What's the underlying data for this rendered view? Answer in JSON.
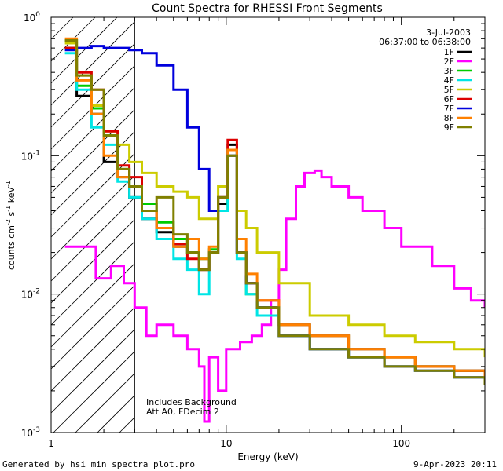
{
  "chart_data": {
    "type": "line",
    "title": "Count Spectra for RHESSI Front Segments",
    "xlabel": "Energy (keV)",
    "ylabel": "counts cm-2 s-1 keV-1",
    "xscale": "log",
    "yscale": "log",
    "xlim": [
      1,
      300
    ],
    "ylim": [
      0.001,
      1
    ],
    "x_tick_labels": [
      {
        "value": 1,
        "label": "1"
      },
      {
        "value": 10,
        "label": "10"
      },
      {
        "value": 100,
        "label": "100"
      }
    ],
    "y_tick_labels": [
      {
        "value": 1,
        "base": "10",
        "exp": "0"
      },
      {
        "value": 0.1,
        "base": "10",
        "exp": "-1"
      },
      {
        "value": 0.01,
        "base": "10",
        "exp": "-2"
      },
      {
        "value": 0.001,
        "base": "10",
        "exp": "-3"
      }
    ],
    "date": "3-Jul-2003",
    "time_range": "06:37:00 to 06:38:00",
    "annotations": [
      "Includes Background",
      "Att A0, FDecim 2"
    ],
    "hatched_region_max_kev": 3,
    "series": [
      {
        "name": "1F",
        "color": "#000000",
        "energies": [
          1.2,
          1.4,
          1.7,
          2.0,
          2.4,
          2.8,
          3.3,
          4.0,
          5.0,
          6.0,
          7.0,
          8.0,
          9.0,
          10.2,
          11.5,
          13,
          15,
          20,
          30,
          50,
          80,
          120,
          200,
          300
        ],
        "values": [
          0.6,
          0.27,
          0.2,
          0.09,
          0.07,
          0.05,
          0.035,
          0.028,
          0.022,
          0.02,
          0.015,
          0.02,
          0.045,
          0.12,
          0.02,
          0.012,
          0.008,
          0.005,
          0.004,
          0.0035,
          0.003,
          0.003,
          0.0028,
          0.0025
        ]
      },
      {
        "name": "2F",
        "color": "#ff00ff",
        "energies": [
          1.2,
          1.5,
          1.8,
          2.2,
          2.6,
          3.0,
          3.5,
          4.0,
          5.0,
          6.0,
          7.0,
          7.5,
          8.0,
          9.0,
          10,
          12,
          14,
          16,
          18,
          20,
          22,
          25,
          28,
          32,
          35,
          40,
          50,
          60,
          80,
          100,
          150,
          200,
          250,
          300
        ],
        "values": [
          0.022,
          0.022,
          0.013,
          0.016,
          0.012,
          0.008,
          0.005,
          0.006,
          0.005,
          0.004,
          0.003,
          0.0012,
          0.0035,
          0.002,
          0.004,
          0.0045,
          0.005,
          0.006,
          0.009,
          0.015,
          0.035,
          0.06,
          0.075,
          0.078,
          0.07,
          0.06,
          0.05,
          0.04,
          0.03,
          0.022,
          0.016,
          0.011,
          0.009,
          0.008
        ]
      },
      {
        "name": "3F",
        "color": "#00cc00",
        "energies": [
          1.2,
          1.4,
          1.7,
          2.0,
          2.4,
          2.8,
          3.3,
          4.0,
          5.0,
          6.0,
          7.0,
          8.0,
          9.0,
          10.2,
          11.5,
          13,
          15,
          20,
          30,
          50,
          80,
          120,
          200,
          300
        ],
        "values": [
          0.68,
          0.32,
          0.22,
          0.14,
          0.08,
          0.06,
          0.045,
          0.033,
          0.025,
          0.02,
          0.018,
          0.021,
          0.04,
          0.1,
          0.02,
          0.01,
          0.008,
          0.006,
          0.005,
          0.004,
          0.0035,
          0.003,
          0.0028,
          0.0025
        ]
      },
      {
        "name": "4F",
        "color": "#00e5e5",
        "energies": [
          1.2,
          1.4,
          1.7,
          2.0,
          2.4,
          2.8,
          3.3,
          4.0,
          5.0,
          6.0,
          7.0,
          8.0,
          9.0,
          10.2,
          11.5,
          13,
          15,
          20,
          30,
          50,
          80,
          120,
          200,
          300
        ],
        "values": [
          0.55,
          0.3,
          0.16,
          0.12,
          0.065,
          0.05,
          0.035,
          0.025,
          0.018,
          0.015,
          0.01,
          0.02,
          0.04,
          0.11,
          0.018,
          0.01,
          0.007,
          0.005,
          0.004,
          0.0035,
          0.003,
          0.0028,
          0.0025,
          0.0022
        ]
      },
      {
        "name": "5F",
        "color": "#cccc00",
        "energies": [
          1.2,
          1.4,
          1.7,
          2.0,
          2.4,
          2.8,
          3.3,
          4.0,
          5.0,
          6.0,
          7.0,
          8.0,
          9.0,
          10.2,
          11.5,
          13,
          15,
          20,
          30,
          50,
          80,
          120,
          200,
          300
        ],
        "values": [
          0.65,
          0.38,
          0.23,
          0.15,
          0.12,
          0.09,
          0.075,
          0.06,
          0.055,
          0.05,
          0.035,
          0.035,
          0.06,
          0.1,
          0.04,
          0.03,
          0.02,
          0.012,
          0.007,
          0.006,
          0.005,
          0.0045,
          0.004,
          0.0035
        ]
      },
      {
        "name": "6F",
        "color": "#dd0000",
        "energies": [
          1.2,
          1.4,
          1.7,
          2.0,
          2.4,
          2.8,
          3.3,
          4.0,
          5.0,
          6.0,
          7.0,
          8.0,
          9.0,
          10.2,
          11.5,
          13,
          15,
          20,
          30,
          50,
          80,
          120,
          200,
          300
        ],
        "values": [
          0.6,
          0.4,
          0.3,
          0.15,
          0.085,
          0.07,
          0.04,
          0.03,
          0.023,
          0.018,
          0.015,
          0.02,
          0.05,
          0.13,
          0.02,
          0.012,
          0.009,
          0.006,
          0.005,
          0.004,
          0.0035,
          0.003,
          0.0028,
          0.0025
        ]
      },
      {
        "name": "7F",
        "color": "#0000dd",
        "energies": [
          1.2,
          1.4,
          1.7,
          2.0,
          2.4,
          2.8,
          3.3,
          4.0,
          5.0,
          6.0,
          7.0,
          8.0,
          9.0,
          10.2,
          11.5,
          13,
          15,
          20,
          30,
          50,
          80,
          120,
          200,
          300
        ],
        "values": [
          0.58,
          0.6,
          0.62,
          0.6,
          0.6,
          0.58,
          0.55,
          0.45,
          0.3,
          0.16,
          0.08,
          0.04,
          0.05,
          0.1,
          0.02,
          0.012,
          0.008,
          0.005,
          0.004,
          0.0035,
          0.003,
          0.0028,
          0.0025,
          0.0022
        ]
      },
      {
        "name": "8F",
        "color": "#ff8000",
        "energies": [
          1.2,
          1.4,
          1.7,
          2.0,
          2.4,
          2.8,
          3.3,
          4.0,
          5.0,
          6.0,
          7.0,
          8.0,
          9.0,
          10.2,
          11.5,
          13,
          15,
          20,
          30,
          50,
          80,
          120,
          200,
          300
        ],
        "values": [
          0.7,
          0.35,
          0.2,
          0.1,
          0.07,
          0.06,
          0.04,
          0.03,
          0.022,
          0.025,
          0.018,
          0.022,
          0.05,
          0.11,
          0.025,
          0.014,
          0.009,
          0.006,
          0.005,
          0.004,
          0.0035,
          0.003,
          0.0028,
          0.0025
        ]
      },
      {
        "name": "9F",
        "color": "#808000",
        "energies": [
          1.2,
          1.4,
          1.7,
          2.0,
          2.4,
          2.8,
          3.3,
          4.0,
          5.0,
          6.0,
          7.0,
          8.0,
          9.0,
          10.2,
          11.5,
          13,
          15,
          20,
          30,
          50,
          80,
          120,
          200,
          300
        ],
        "values": [
          0.68,
          0.38,
          0.3,
          0.14,
          0.08,
          0.06,
          0.04,
          0.05,
          0.027,
          0.02,
          0.015,
          0.02,
          0.05,
          0.1,
          0.02,
          0.012,
          0.008,
          0.005,
          0.004,
          0.0035,
          0.003,
          0.0028,
          0.0025,
          0.0022
        ]
      }
    ]
  },
  "footer": {
    "generated_by": "Generated by hsi_min_spectra_plot.pro",
    "timestamp": "9-Apr-2023 20:11"
  }
}
